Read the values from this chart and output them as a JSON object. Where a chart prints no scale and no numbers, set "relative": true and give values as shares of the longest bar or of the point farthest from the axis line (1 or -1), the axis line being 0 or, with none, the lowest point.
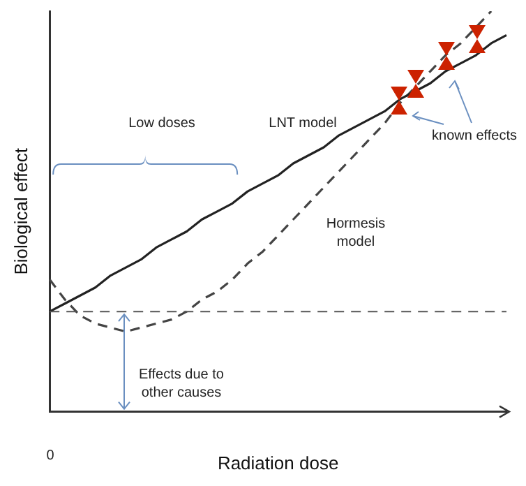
{
  "chart_data": {
    "type": "line",
    "relative": true,
    "xlabel": "Radiation dose",
    "ylabel": "Biological effect",
    "categories": [
      null,
      null,
      null,
      null,
      null,
      null,
      null,
      null,
      null,
      null,
      null,
      null,
      null,
      null,
      null,
      null,
      null,
      null,
      null,
      null,
      null,
      null,
      null,
      null,
      null,
      null,
      null,
      null,
      null,
      null,
      null
    ],
    "series": [
      {
        "type": "line",
        "color": "#222222",
        "line_style": "solid",
        "values": [
          0.25,
          0.27,
          0.29,
          0.31,
          0.34,
          0.36,
          0.38,
          0.41,
          0.43,
          0.45,
          0.48,
          0.5,
          0.52,
          0.55,
          0.57,
          0.59,
          0.62,
          0.64,
          0.66,
          0.69,
          0.71,
          0.73,
          0.75,
          0.78,
          0.8,
          0.82,
          0.85,
          0.87,
          0.89,
          0.92,
          0.94
        ]
      },
      {
        "type": "line",
        "color": "#444444",
        "line_style": "dashed",
        "values": [
          0.33,
          0.28,
          0.24,
          0.22,
          0.21,
          0.2,
          0.21,
          0.22,
          0.23,
          0.25,
          0.28,
          0.3,
          0.33,
          0.37,
          0.4,
          0.44,
          0.48,
          0.52,
          0.56,
          0.6,
          0.64,
          0.68,
          0.72,
          0.77,
          0.81,
          0.85,
          0.89,
          0.92,
          0.96,
          1.0,
          null
        ]
      }
    ],
    "ref_lines": [
      {
        "axis": "y",
        "value": 0.25,
        "color": "#555555",
        "line_style": "dashed"
      }
    ],
    "annotations": [
      "Low doses",
      "LNT model",
      "Hormesis model",
      "known effects",
      "Effects due to other causes",
      "0"
    ],
    "grid": false,
    "legend": false
  }
}
